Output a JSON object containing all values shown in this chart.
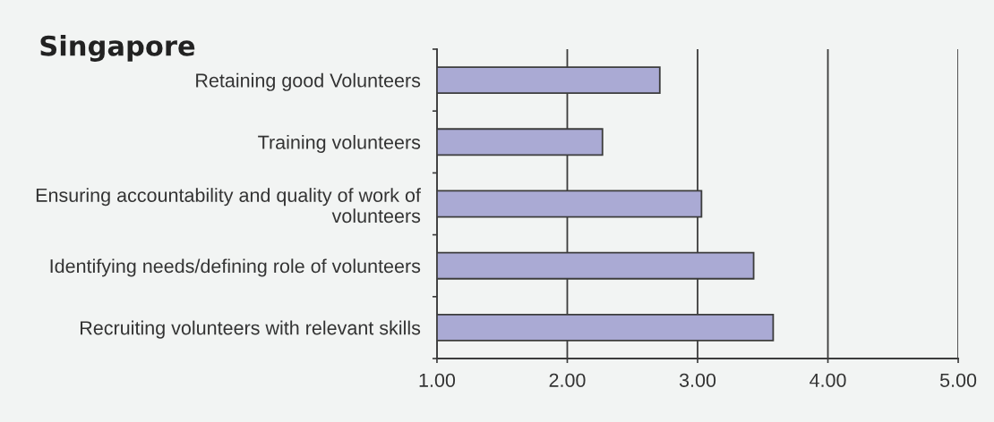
{
  "chart_data": {
    "type": "bar",
    "orientation": "horizontal",
    "title": "Singapore",
    "categories": [
      "Retaining good Volunteers",
      "Training volunteers",
      "Ensuring accountability and quality of work of volunteers",
      "Identifying needs/defining role of volunteers",
      "Recruiting volunteers with relevant skills"
    ],
    "values": [
      2.71,
      2.27,
      3.03,
      3.43,
      3.58
    ],
    "color": "#aaaad4",
    "xlim": [
      1,
      5
    ],
    "xticks": [
      {
        "value": 1,
        "label": "1.00"
      },
      {
        "value": 2,
        "label": "2.00"
      },
      {
        "value": 3,
        "label": "3.00"
      },
      {
        "value": 4,
        "label": "4.00"
      },
      {
        "value": 5,
        "label": "5.00"
      }
    ],
    "grid": "x"
  }
}
